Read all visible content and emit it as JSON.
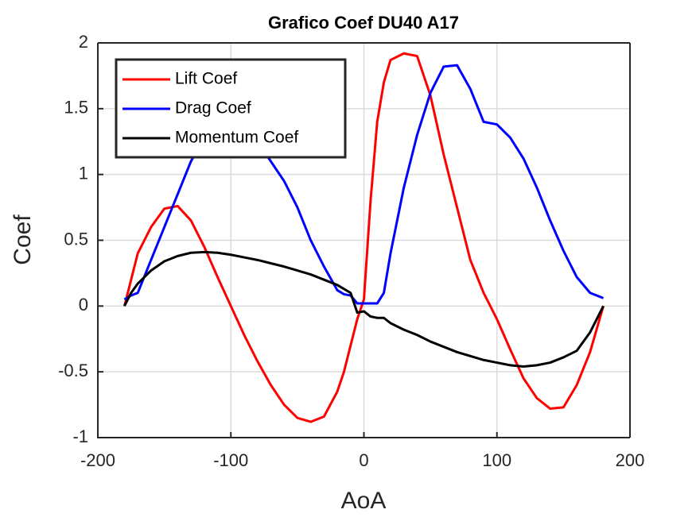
{
  "chart_data": {
    "type": "line",
    "title": "Grafico Coef DU40 A17",
    "x_label": "AoA",
    "y_label": "Coef",
    "x": [
      -180,
      -175,
      -170,
      -160,
      -150,
      -140,
      -130,
      -120,
      -110,
      -100,
      -90,
      -80,
      -70,
      -60,
      -50,
      -40,
      -30,
      -20,
      -15,
      -10,
      -5,
      0,
      5,
      10,
      15,
      20,
      30,
      40,
      50,
      60,
      70,
      80,
      90,
      100,
      110,
      120,
      130,
      140,
      150,
      160,
      170,
      180
    ],
    "series": [
      {
        "name": "Lift Coef",
        "color": "#ff0000",
        "values": [
          0,
          0.2,
          0.4,
          0.6,
          0.74,
          0.76,
          0.65,
          0.45,
          0.22,
          0,
          -0.22,
          -0.42,
          -0.6,
          -0.75,
          -0.85,
          -0.88,
          -0.84,
          -0.65,
          -0.5,
          -0.3,
          -0.1,
          0.05,
          0.8,
          1.4,
          1.7,
          1.87,
          1.92,
          1.9,
          1.6,
          1.15,
          0.75,
          0.35,
          0.1,
          -0.1,
          -0.33,
          -0.55,
          -0.7,
          -0.78,
          -0.77,
          -0.6,
          -0.35,
          0
        ]
      },
      {
        "name": "Drag Coef",
        "color": "#0000ff",
        "values": [
          0.05,
          0.08,
          0.1,
          0.35,
          0.6,
          0.85,
          1.1,
          1.28,
          1.35,
          1.38,
          1.35,
          1.25,
          1.1,
          0.95,
          0.75,
          0.5,
          0.3,
          0.12,
          0.09,
          0.08,
          0.02,
          0.02,
          0.02,
          0.02,
          0.1,
          0.4,
          0.9,
          1.3,
          1.62,
          1.82,
          1.83,
          1.65,
          1.4,
          1.38,
          1.28,
          1.12,
          0.9,
          0.65,
          0.42,
          0.22,
          0.1,
          0.06
        ]
      },
      {
        "name": "Momentum Coef",
        "color": "#000000",
        "values": [
          0,
          0.1,
          0.17,
          0.27,
          0.34,
          0.38,
          0.405,
          0.41,
          0.405,
          0.39,
          0.37,
          0.35,
          0.325,
          0.3,
          0.27,
          0.24,
          0.2,
          0.16,
          0.13,
          0.1,
          -0.05,
          -0.04,
          -0.08,
          -0.09,
          -0.09,
          -0.13,
          -0.18,
          -0.22,
          -0.27,
          -0.31,
          -0.35,
          -0.38,
          -0.41,
          -0.43,
          -0.45,
          -0.46,
          -0.45,
          -0.43,
          -0.39,
          -0.34,
          -0.2,
          0
        ]
      }
    ],
    "xlim": [
      -200,
      200
    ],
    "xticks": [
      -200,
      -100,
      0,
      100,
      200
    ],
    "ylim": [
      -1,
      2
    ],
    "yticks": [
      -1,
      -0.5,
      0,
      0.5,
      1,
      1.5,
      2
    ],
    "grid": true,
    "legend": "top-left"
  }
}
